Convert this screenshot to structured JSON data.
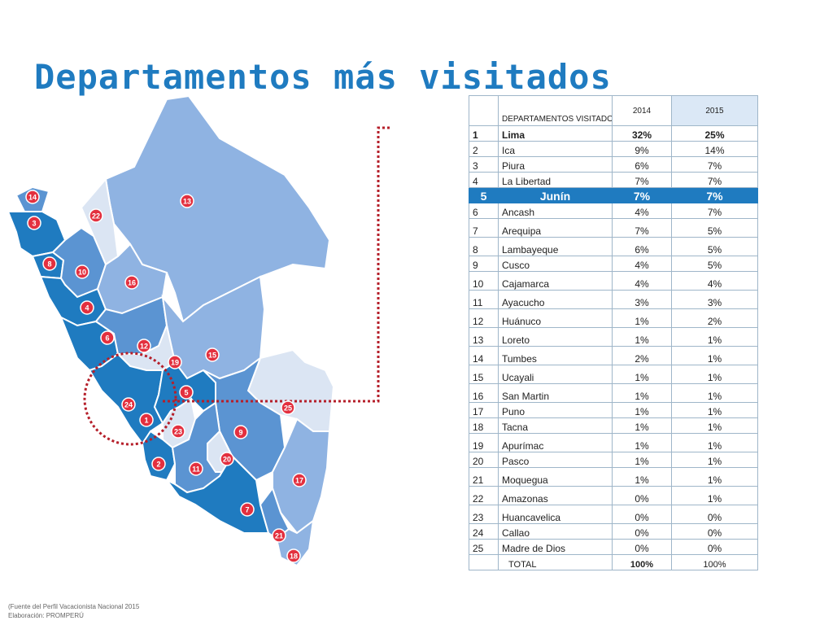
{
  "title": "Departamentos más visitados",
  "colors": {
    "title": "#1f7bc0",
    "highlight": "#1f7bc0",
    "map_dark": "#1f7bc0",
    "map_mid": "#5b94d2",
    "map_light": "#8fb3e2",
    "map_pale": "#dbe5f3",
    "marker": "#e3303f",
    "callout": "#b51f2a"
  },
  "table": {
    "headers": {
      "name": "DEPARTAMENTOS VISITADOS",
      "y2014": "2014",
      "y2015": "2015"
    },
    "rows": [
      {
        "rank": "1",
        "name": "Lima",
        "y2014": "32%",
        "y2015": "25%"
      },
      {
        "rank": "2",
        "name": "Ica",
        "y2014": "9%",
        "y2015": "14%"
      },
      {
        "rank": "3",
        "name": "Piura",
        "y2014": "6%",
        "y2015": "7%"
      },
      {
        "rank": "4",
        "name": "La Libertad",
        "y2014": "7%",
        "y2015": "7%"
      },
      {
        "rank": "5",
        "name": "Junín",
        "y2014": "7%",
        "y2015": "7%"
      },
      {
        "rank": "6",
        "name": "Ancash",
        "y2014": "4%",
        "y2015": "7%"
      },
      {
        "rank": "7",
        "name": "Arequipa",
        "y2014": "7%",
        "y2015": "5%"
      },
      {
        "rank": "8",
        "name": "Lambayeque",
        "y2014": "6%",
        "y2015": "5%"
      },
      {
        "rank": "9",
        "name": "Cusco",
        "y2014": "4%",
        "y2015": "5%"
      },
      {
        "rank": "10",
        "name": "Cajamarca",
        "y2014": "4%",
        "y2015": "4%"
      },
      {
        "rank": "11",
        "name": "Ayacucho",
        "y2014": "3%",
        "y2015": "3%"
      },
      {
        "rank": "12",
        "name": "Huánuco",
        "y2014": "1%",
        "y2015": "2%"
      },
      {
        "rank": "13",
        "name": "Loreto",
        "y2014": "1%",
        "y2015": "1%"
      },
      {
        "rank": "14",
        "name": "Tumbes",
        "y2014": "2%",
        "y2015": "1%"
      },
      {
        "rank": "15",
        "name": "Ucayali",
        "y2014": "1%",
        "y2015": "1%"
      },
      {
        "rank": "16",
        "name": "San Martin",
        "y2014": "1%",
        "y2015": "1%"
      },
      {
        "rank": "17",
        "name": "Puno",
        "y2014": "1%",
        "y2015": "1%"
      },
      {
        "rank": "18",
        "name": "Tacna",
        "y2014": "1%",
        "y2015": "1%"
      },
      {
        "rank": "19",
        "name": "Apurímac",
        "y2014": "1%",
        "y2015": "1%"
      },
      {
        "rank": "20",
        "name": "Pasco",
        "y2014": "1%",
        "y2015": "1%"
      },
      {
        "rank": "21",
        "name": "Moquegua",
        "y2014": "1%",
        "y2015": "1%"
      },
      {
        "rank": "22",
        "name": "Amazonas",
        "y2014": "0%",
        "y2015": "1%"
      },
      {
        "rank": "23",
        "name": "Huancavelica",
        "y2014": "0%",
        "y2015": "0%"
      },
      {
        "rank": "24",
        "name": "Callao",
        "y2014": "0%",
        "y2015": "0%"
      },
      {
        "rank": "25",
        "name": "Madre de Dios",
        "y2014": "0%",
        "y2015": "0%"
      }
    ],
    "total": {
      "label": "TOTAL",
      "y2014": "100%",
      "y2015": "100%"
    }
  },
  "map": {
    "markers": [
      "1",
      "2",
      "3",
      "4",
      "5",
      "6",
      "7",
      "8",
      "9",
      "10",
      "11",
      "12",
      "13",
      "14",
      "15",
      "16",
      "17",
      "18",
      "19",
      "20",
      "21",
      "22",
      "23",
      "24",
      "25"
    ]
  },
  "footnote": {
    "line1": "(Fuente del Perfil Vacacionista Nacional 2015",
    "line2": "Elaboración: PROMPERÚ"
  }
}
